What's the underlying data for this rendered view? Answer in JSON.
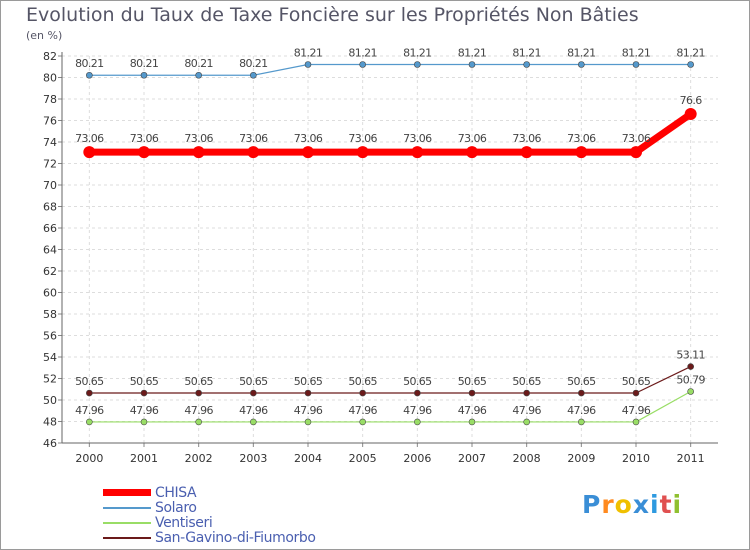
{
  "chart_data": {
    "type": "line",
    "title": "Evolution du Taux de Taxe Foncière sur les Propriétés Non Bâties",
    "subtitle": "(en %)",
    "xlabel": "",
    "ylabel": "",
    "ylim": [
      46,
      82
    ],
    "yticks": [
      46,
      48,
      50,
      52,
      54,
      56,
      58,
      60,
      62,
      64,
      66,
      68,
      70,
      72,
      74,
      76,
      78,
      80,
      82
    ],
    "categories": [
      "2000",
      "2001",
      "2002",
      "2003",
      "2004",
      "2005",
      "2006",
      "2007",
      "2008",
      "2009",
      "2010",
      "2011"
    ],
    "grid": true,
    "legend_position": "bottom-left",
    "series": [
      {
        "name": "CHISA",
        "color": "#ff0000",
        "values": [
          73.06,
          73.06,
          73.06,
          73.06,
          73.06,
          73.06,
          73.06,
          73.06,
          73.06,
          73.06,
          73.06,
          76.6
        ],
        "labels": [
          "73.06",
          "73.06",
          "73.06",
          "73.06",
          "73.06",
          "73.06",
          "73.06",
          "73.06",
          "73.06",
          "73.06",
          "73.06",
          "76.6"
        ]
      },
      {
        "name": "Solaro",
        "color": "#5599cc",
        "values": [
          80.21,
          80.21,
          80.21,
          80.21,
          81.21,
          81.21,
          81.21,
          81.21,
          81.21,
          81.21,
          81.21,
          81.21
        ],
        "labels": [
          "80.21",
          "80.21",
          "80.21",
          "80.21",
          "81.21",
          "81.21",
          "81.21",
          "81.21",
          "81.21",
          "81.21",
          "81.21",
          "81.21"
        ]
      },
      {
        "name": "Ventiseri",
        "color": "#99dd66",
        "values": [
          47.96,
          47.96,
          47.96,
          47.96,
          47.96,
          47.96,
          47.96,
          47.96,
          47.96,
          47.96,
          47.96,
          50.79
        ],
        "labels": [
          "47.96",
          "47.96",
          "47.96",
          "47.96",
          "47.96",
          "47.96",
          "47.96",
          "47.96",
          "47.96",
          "47.96",
          "47.96",
          "50.79"
        ]
      },
      {
        "name": "San-Gavino-di-Fiumorbo",
        "color": "#6b1a1a",
        "values": [
          50.65,
          50.65,
          50.65,
          50.65,
          50.65,
          50.65,
          50.65,
          50.65,
          50.65,
          50.65,
          50.65,
          53.11
        ],
        "labels": [
          "50.65",
          "50.65",
          "50.65",
          "50.65",
          "50.65",
          "50.65",
          "50.65",
          "50.65",
          "50.65",
          "50.65",
          "50.65",
          "53.11"
        ]
      }
    ]
  },
  "logo": {
    "text": "Proxiti",
    "letter_colors": [
      "#3a8ed6",
      "#ff8a1f",
      "#f0c000",
      "#3a8ed6",
      "#2e9ae0",
      "#e05050",
      "#90c030"
    ]
  }
}
